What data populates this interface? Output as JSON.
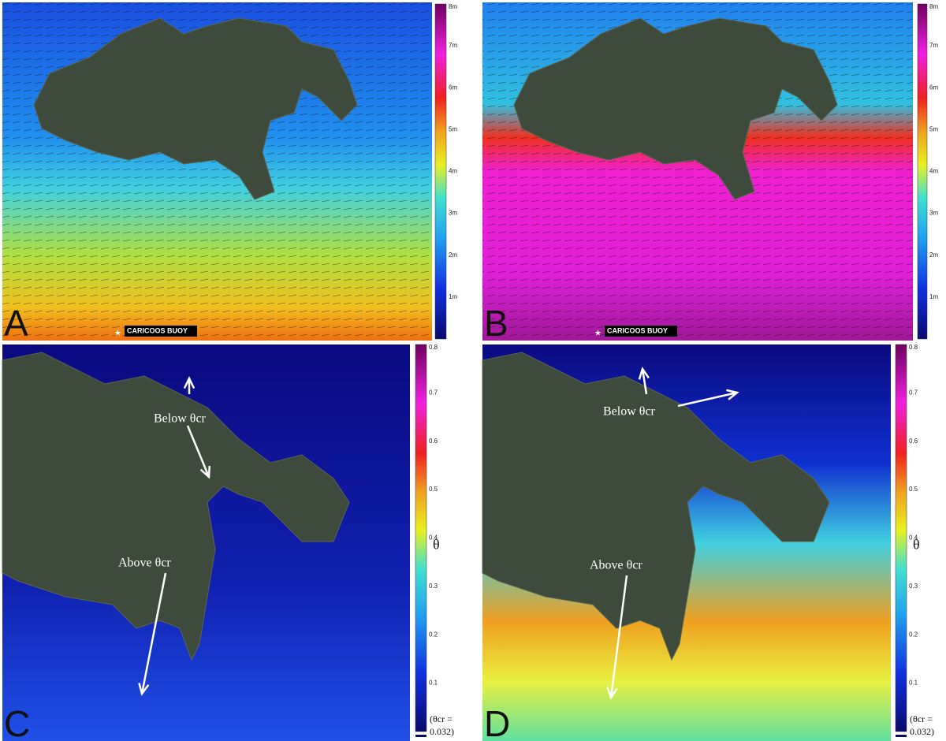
{
  "panels": [
    {
      "label": "A",
      "buoy": "CARICOOS BUOY",
      "colorbar_ticks": [
        "1m",
        "2m",
        "3m",
        "4m",
        "5m",
        "6m",
        "7m",
        "8m"
      ]
    },
    {
      "label": "B",
      "buoy": "CARICOOS BUOY",
      "colorbar_ticks": [
        "1m",
        "2m",
        "3m",
        "4m",
        "5m",
        "6m",
        "7m",
        "8m"
      ]
    },
    {
      "label": "C",
      "colorbar_ticks": [
        "0.1",
        "0.2",
        "0.3",
        "0.4",
        "0.5",
        "0.6",
        "0.7",
        "0.8"
      ],
      "colorbar_title": "θ",
      "note": [
        "(θcr =",
        "0.032)"
      ],
      "annotations": [
        "Below θcr",
        "Above θcr"
      ]
    },
    {
      "label": "D",
      "colorbar_ticks": [
        "0.1",
        "0.2",
        "0.3",
        "0.4",
        "0.5",
        "0.6",
        "0.7",
        "0.8"
      ],
      "colorbar_title": "θ",
      "note": [
        "(θcr =",
        "0.032)"
      ],
      "annotations": [
        "Below θcr",
        "Above θcr"
      ]
    }
  ]
}
